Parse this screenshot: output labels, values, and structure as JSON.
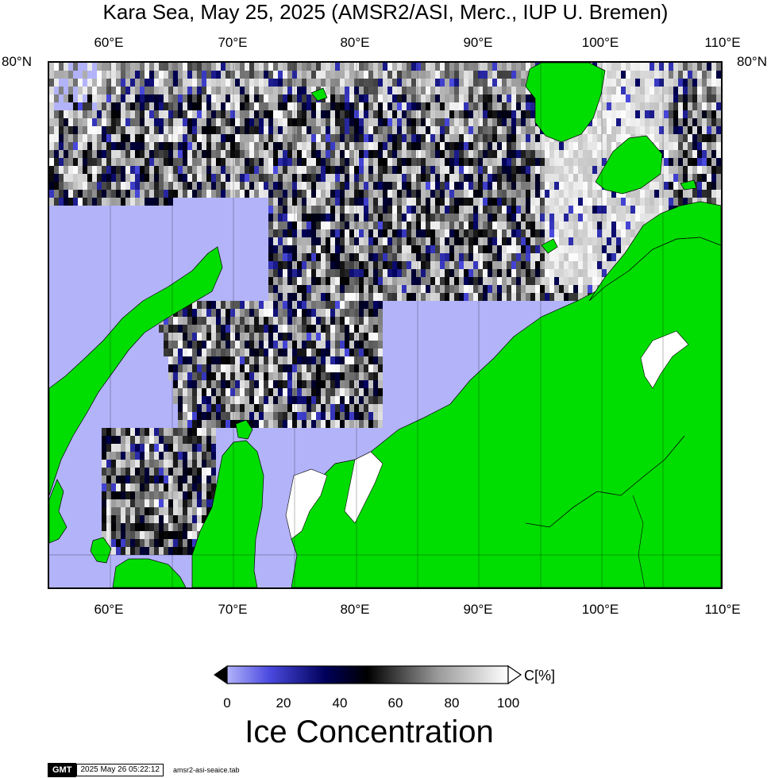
{
  "title": "Kara Sea, May 25, 2025 (AMSR2/ASI, Merc., IUP U. Bremen)",
  "map": {
    "projection": "Mercator",
    "lon_ticks": [
      "60°E",
      "70°E",
      "80°E",
      "90°E",
      "100°E",
      "110°E"
    ],
    "lat_tick": "80°N",
    "land_color": "#00dd00",
    "open_water_color": "#b3b3fa",
    "gridlines": true
  },
  "colorbar": {
    "tick_labels": [
      "0",
      "20",
      "40",
      "60",
      "80",
      "100"
    ],
    "unit": "C[%]",
    "title": "Ice Concentration",
    "stops": [
      {
        "value": 0,
        "color": "#b3b3fa"
      },
      {
        "value": 15,
        "color": "#4a4ae0"
      },
      {
        "value": 35,
        "color": "#00005a"
      },
      {
        "value": 50,
        "color": "#000000"
      },
      {
        "value": 75,
        "color": "#9a9a9a"
      },
      {
        "value": 100,
        "color": "#ffffff"
      }
    ]
  },
  "footer": {
    "logo": "GMT",
    "timestamp": "2025 May 26 05:22:12",
    "filename": "amsr2-asi-seaice.tab"
  }
}
